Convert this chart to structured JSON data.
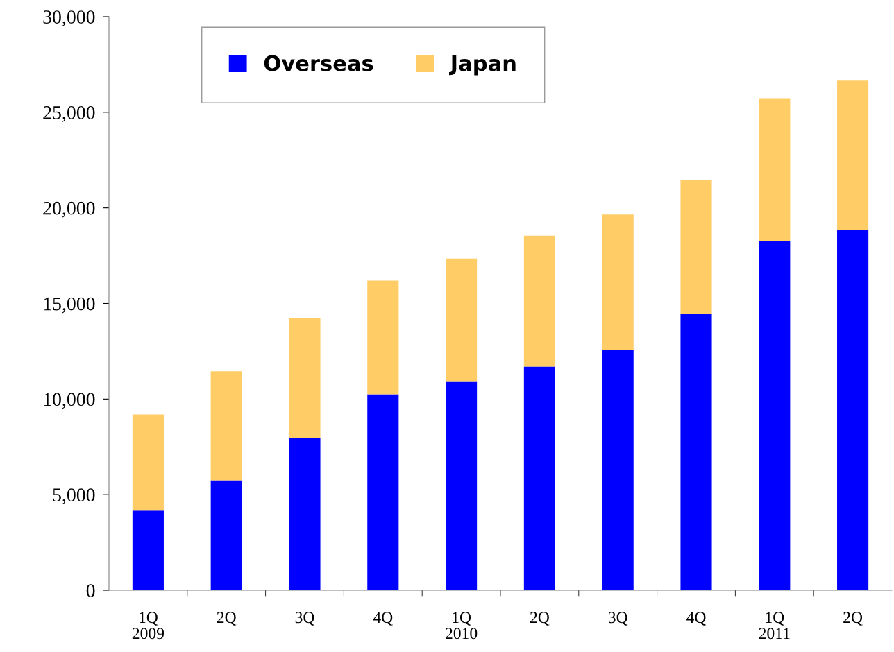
{
  "chart_data": {
    "type": "bar",
    "stacked": true,
    "categories": [
      "1Q\n2009",
      "2Q",
      "3Q",
      "4Q",
      "1Q\n2010",
      "2Q",
      "3Q",
      "4Q",
      "1Q\n2011",
      "2Q"
    ],
    "series": [
      {
        "name": "Overseas",
        "color": "#0000ff",
        "values": [
          4200,
          5750,
          7950,
          10250,
          10900,
          11700,
          12550,
          14450,
          18250,
          18850
        ]
      },
      {
        "name": "Japan",
        "color": "#ffcc66",
        "values": [
          5000,
          5700,
          6300,
          5950,
          6450,
          6850,
          7100,
          7000,
          7450,
          7800
        ]
      }
    ],
    "ylim": [
      0,
      30000
    ],
    "yticks": [
      {
        "value": 0,
        "label": "0"
      },
      {
        "value": 5000,
        "label": "5,000"
      },
      {
        "value": 10000,
        "label": "10,000"
      },
      {
        "value": 15000,
        "label": "15,000"
      },
      {
        "value": 20000,
        "label": "20,000"
      },
      {
        "value": 25000,
        "label": "25,000"
      },
      {
        "value": 30000,
        "label": "30,000"
      }
    ],
    "grid": false,
    "legend": "top left"
  }
}
